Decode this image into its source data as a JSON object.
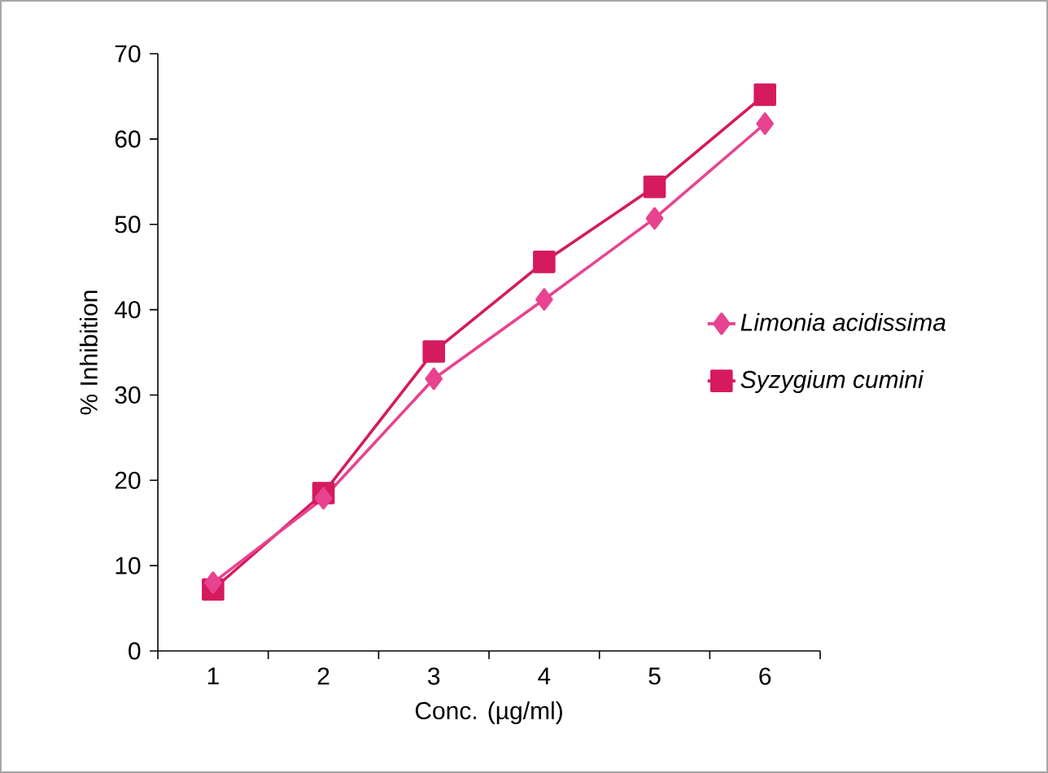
{
  "chart_data": {
    "type": "line",
    "xlabel": "Conc. (µg/ml)",
    "ylabel": "% Inhibition",
    "categories": [
      "1",
      "2",
      "3",
      "4",
      "5",
      "6"
    ],
    "series": [
      {
        "name": "*Limonia acidissima*",
        "color": "#e8438f",
        "marker": "diamond",
        "values": [
          8.0,
          17.9,
          31.9,
          41.2,
          50.7,
          61.8
        ]
      },
      {
        "name": "*Syzygium cumini*",
        "color": "#d51a5e",
        "marker": "square",
        "values": [
          7.2,
          18.5,
          35.1,
          45.6,
          54.4,
          65.2
        ]
      }
    ],
    "ylim": [
      0,
      70
    ],
    "yticks": [
      0,
      10,
      20,
      30,
      40,
      50,
      60,
      70
    ],
    "grid": false,
    "legend": "right"
  }
}
